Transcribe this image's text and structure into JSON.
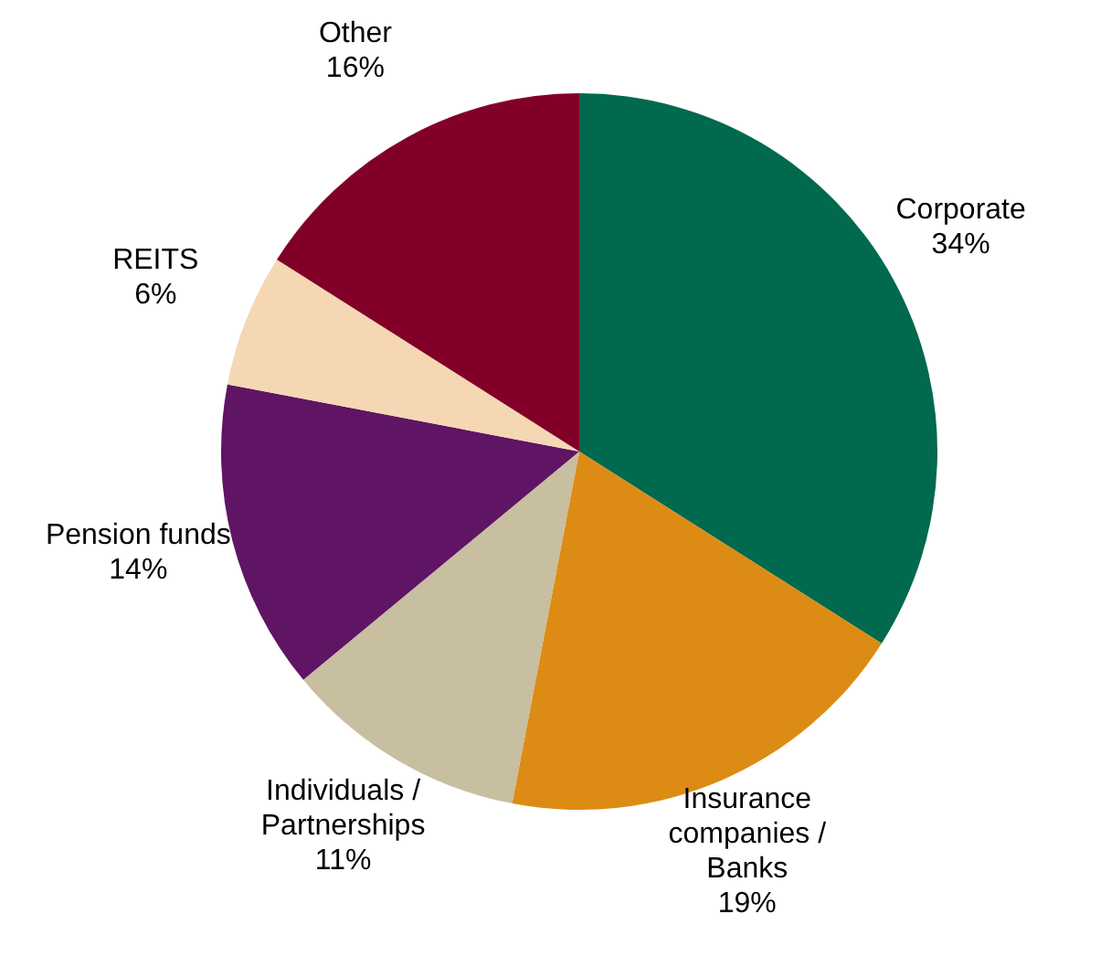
{
  "chart_data": {
    "type": "pie",
    "categories": [
      "Corporate",
      "Insurance companies / Banks",
      "Individuals / Partnerships",
      "Pension funds",
      "REITS",
      "Other"
    ],
    "values": [
      34,
      19,
      11,
      14,
      6,
      16
    ],
    "colors": [
      "#00694e",
      "#dc8c14",
      "#c8bea0",
      "#5f1464",
      "#f5d7b4",
      "#820028"
    ],
    "value_labels": [
      "34%",
      "19%",
      "11%",
      "14%",
      "6%",
      "16%"
    ]
  }
}
